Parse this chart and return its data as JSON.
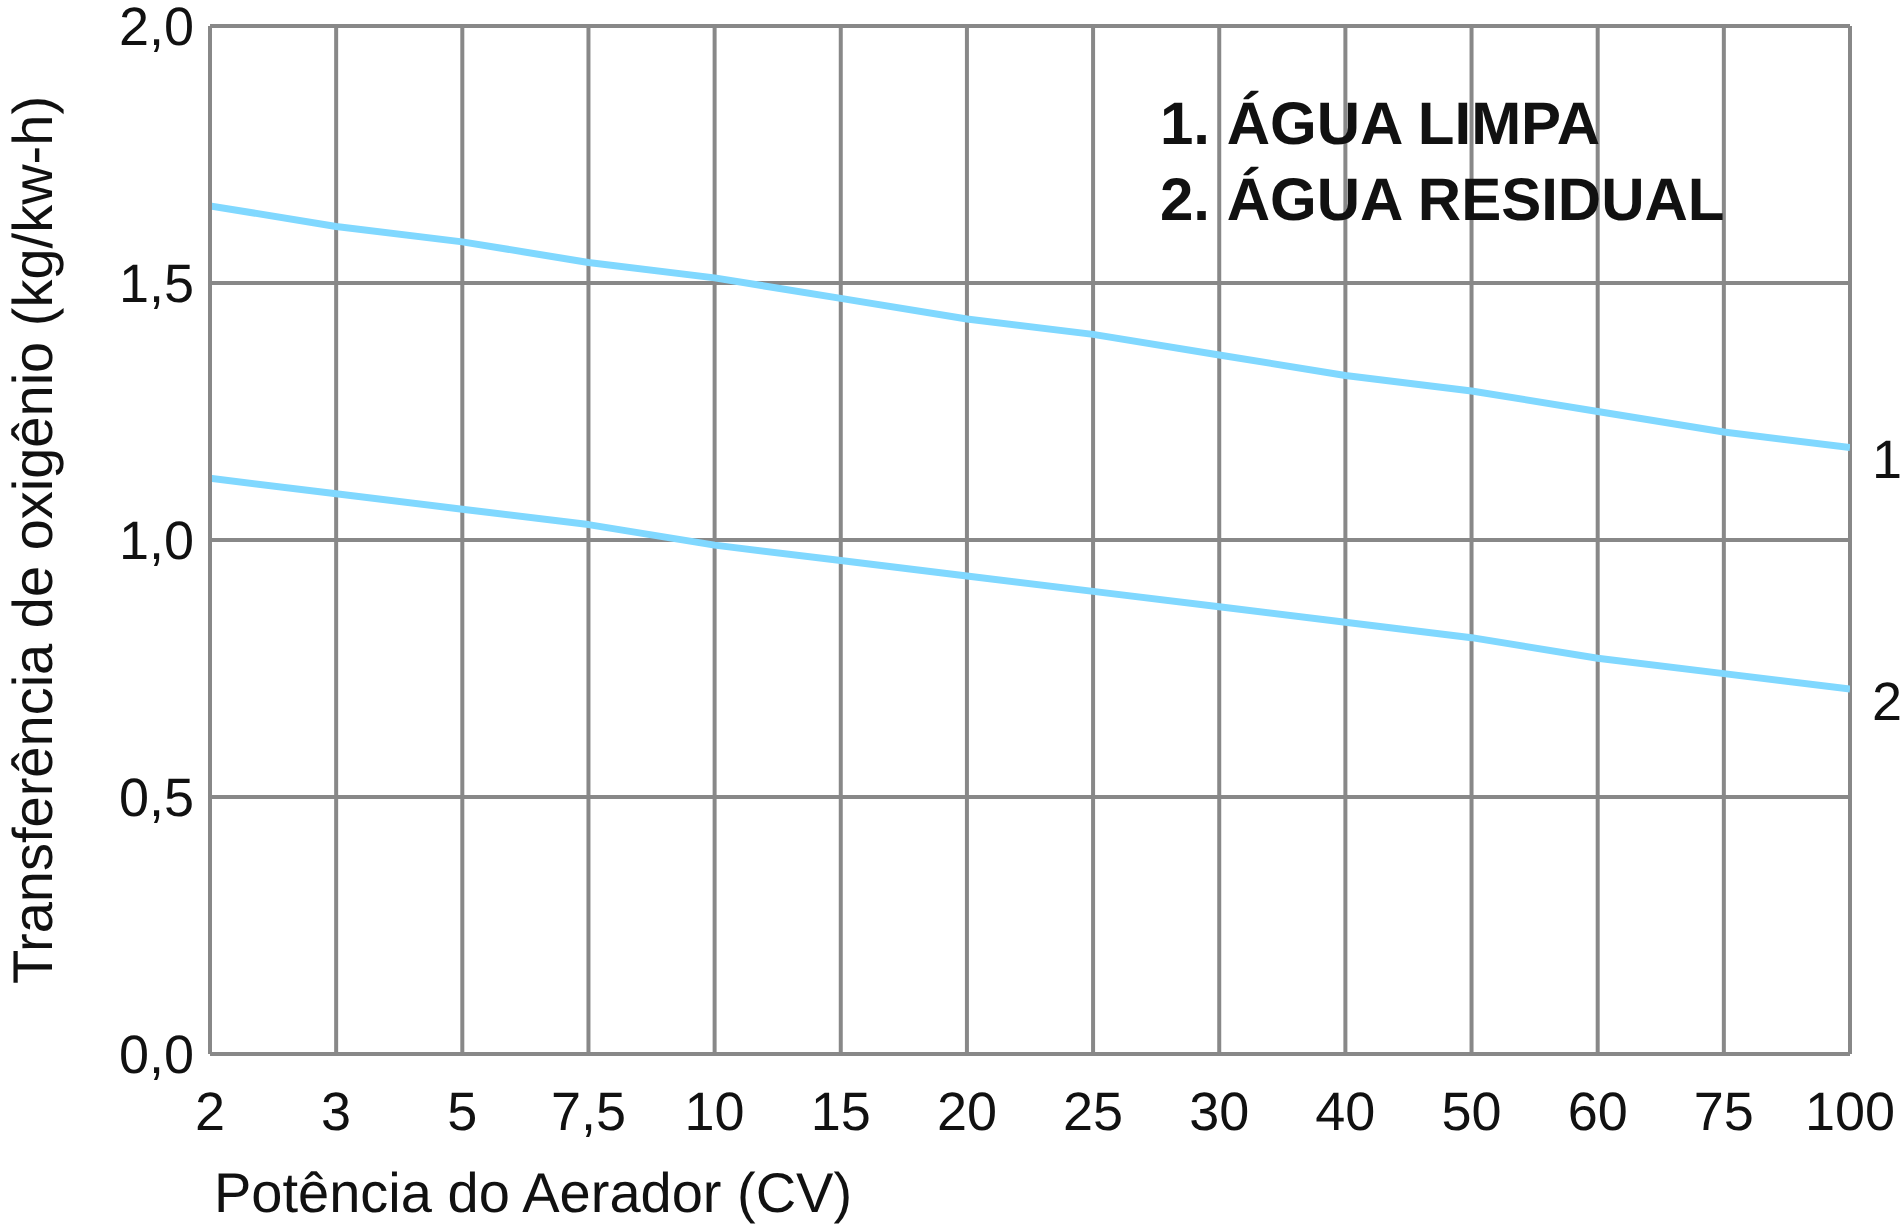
{
  "chart_data": {
    "type": "line",
    "xlabel": "Potência do Aerador (CV)",
    "ylabel": "Transferência de oxigênio (kg/kw-h)",
    "categories": [
      "2",
      "3",
      "5",
      "7,5",
      "10",
      "15",
      "20",
      "25",
      "30",
      "40",
      "50",
      "60",
      "75",
      "100"
    ],
    "series": [
      {
        "name": "1",
        "color": "#80d8ff",
        "values": [
          1.65,
          1.61,
          1.58,
          1.54,
          1.51,
          1.47,
          1.43,
          1.4,
          1.36,
          1.32,
          1.29,
          1.25,
          1.21,
          1.18
        ]
      },
      {
        "name": "2",
        "color": "#80d8ff",
        "values": [
          1.12,
          1.09,
          1.06,
          1.03,
          0.99,
          0.96,
          0.93,
          0.9,
          0.87,
          0.84,
          0.81,
          0.77,
          0.74,
          0.71
        ]
      }
    ],
    "ylim": [
      0,
      2
    ],
    "yticks": [
      {
        "value": 0,
        "label": "0,0"
      },
      {
        "value": 0.5,
        "label": "0,5"
      },
      {
        "value": 1,
        "label": "1,0"
      },
      {
        "value": 1.5,
        "label": "1,5"
      },
      {
        "value": 2,
        "label": "2,0"
      }
    ],
    "grid": true,
    "line_style": "solid",
    "annotations": [
      "1. ÁGUA LIMPA",
      "2. ÁGUA RESIDUAL"
    ]
  }
}
